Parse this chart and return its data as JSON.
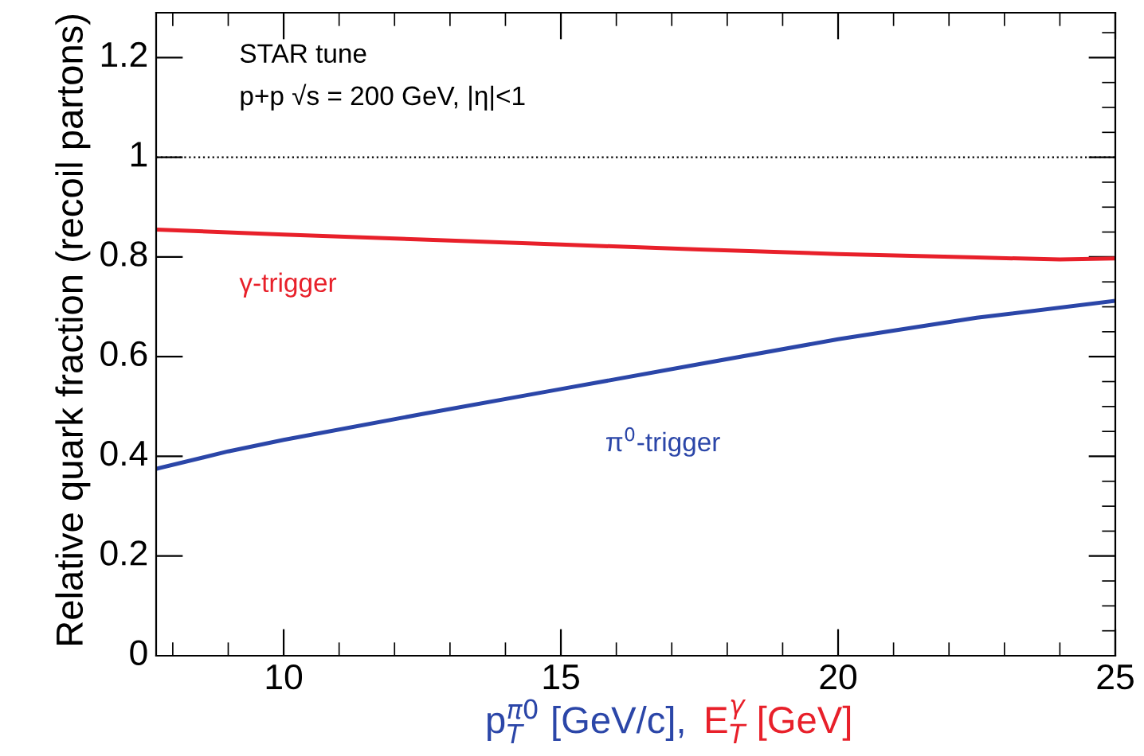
{
  "chart_data": {
    "type": "line",
    "ylabel": "Relative quark fraction (recoil partons)",
    "xlabel": "p$^{π0}$$_{T}$ [GeV/c],",
    "xlim": [
      7.7,
      25
    ],
    "xticks": [
      10,
      15,
      20,
      25
    ],
    "ylim": [
      0,
      1.29
    ],
    "yticks": [
      0,
      0.2,
      0.4,
      0.6,
      0.8,
      1,
      1.2
    ],
    "annotations": [
      "STAR tune",
      "p+p √s = 200 GeV, |η|<1",
      "E$^{γ}$$_{T}$ [GeV]"
    ],
    "ref_lines": [
      {
        "axis": "y",
        "value": 1,
        "line_style": "dotted",
        "color": "#000000"
      }
    ],
    "series": [
      {
        "name": "γ-trigger",
        "color": "#e8202a",
        "x": [
          7.7,
          10,
          12.5,
          15,
          17.5,
          20,
          22.5,
          24,
          25
        ],
        "values": [
          0.855,
          0.845,
          0.835,
          0.825,
          0.815,
          0.806,
          0.799,
          0.795,
          0.797
        ]
      },
      {
        "name": "π$^{0}$-trigger",
        "color": "#2b46a8",
        "x": [
          7.7,
          9,
          10,
          12.5,
          15,
          17.5,
          20,
          22.5,
          25
        ],
        "values": [
          0.375,
          0.41,
          0.433,
          0.485,
          0.535,
          0.585,
          0.635,
          0.678,
          0.712
        ]
      }
    ],
    "legend": false,
    "marker": "none",
    "line_style": "solid",
    "grid": false
  }
}
